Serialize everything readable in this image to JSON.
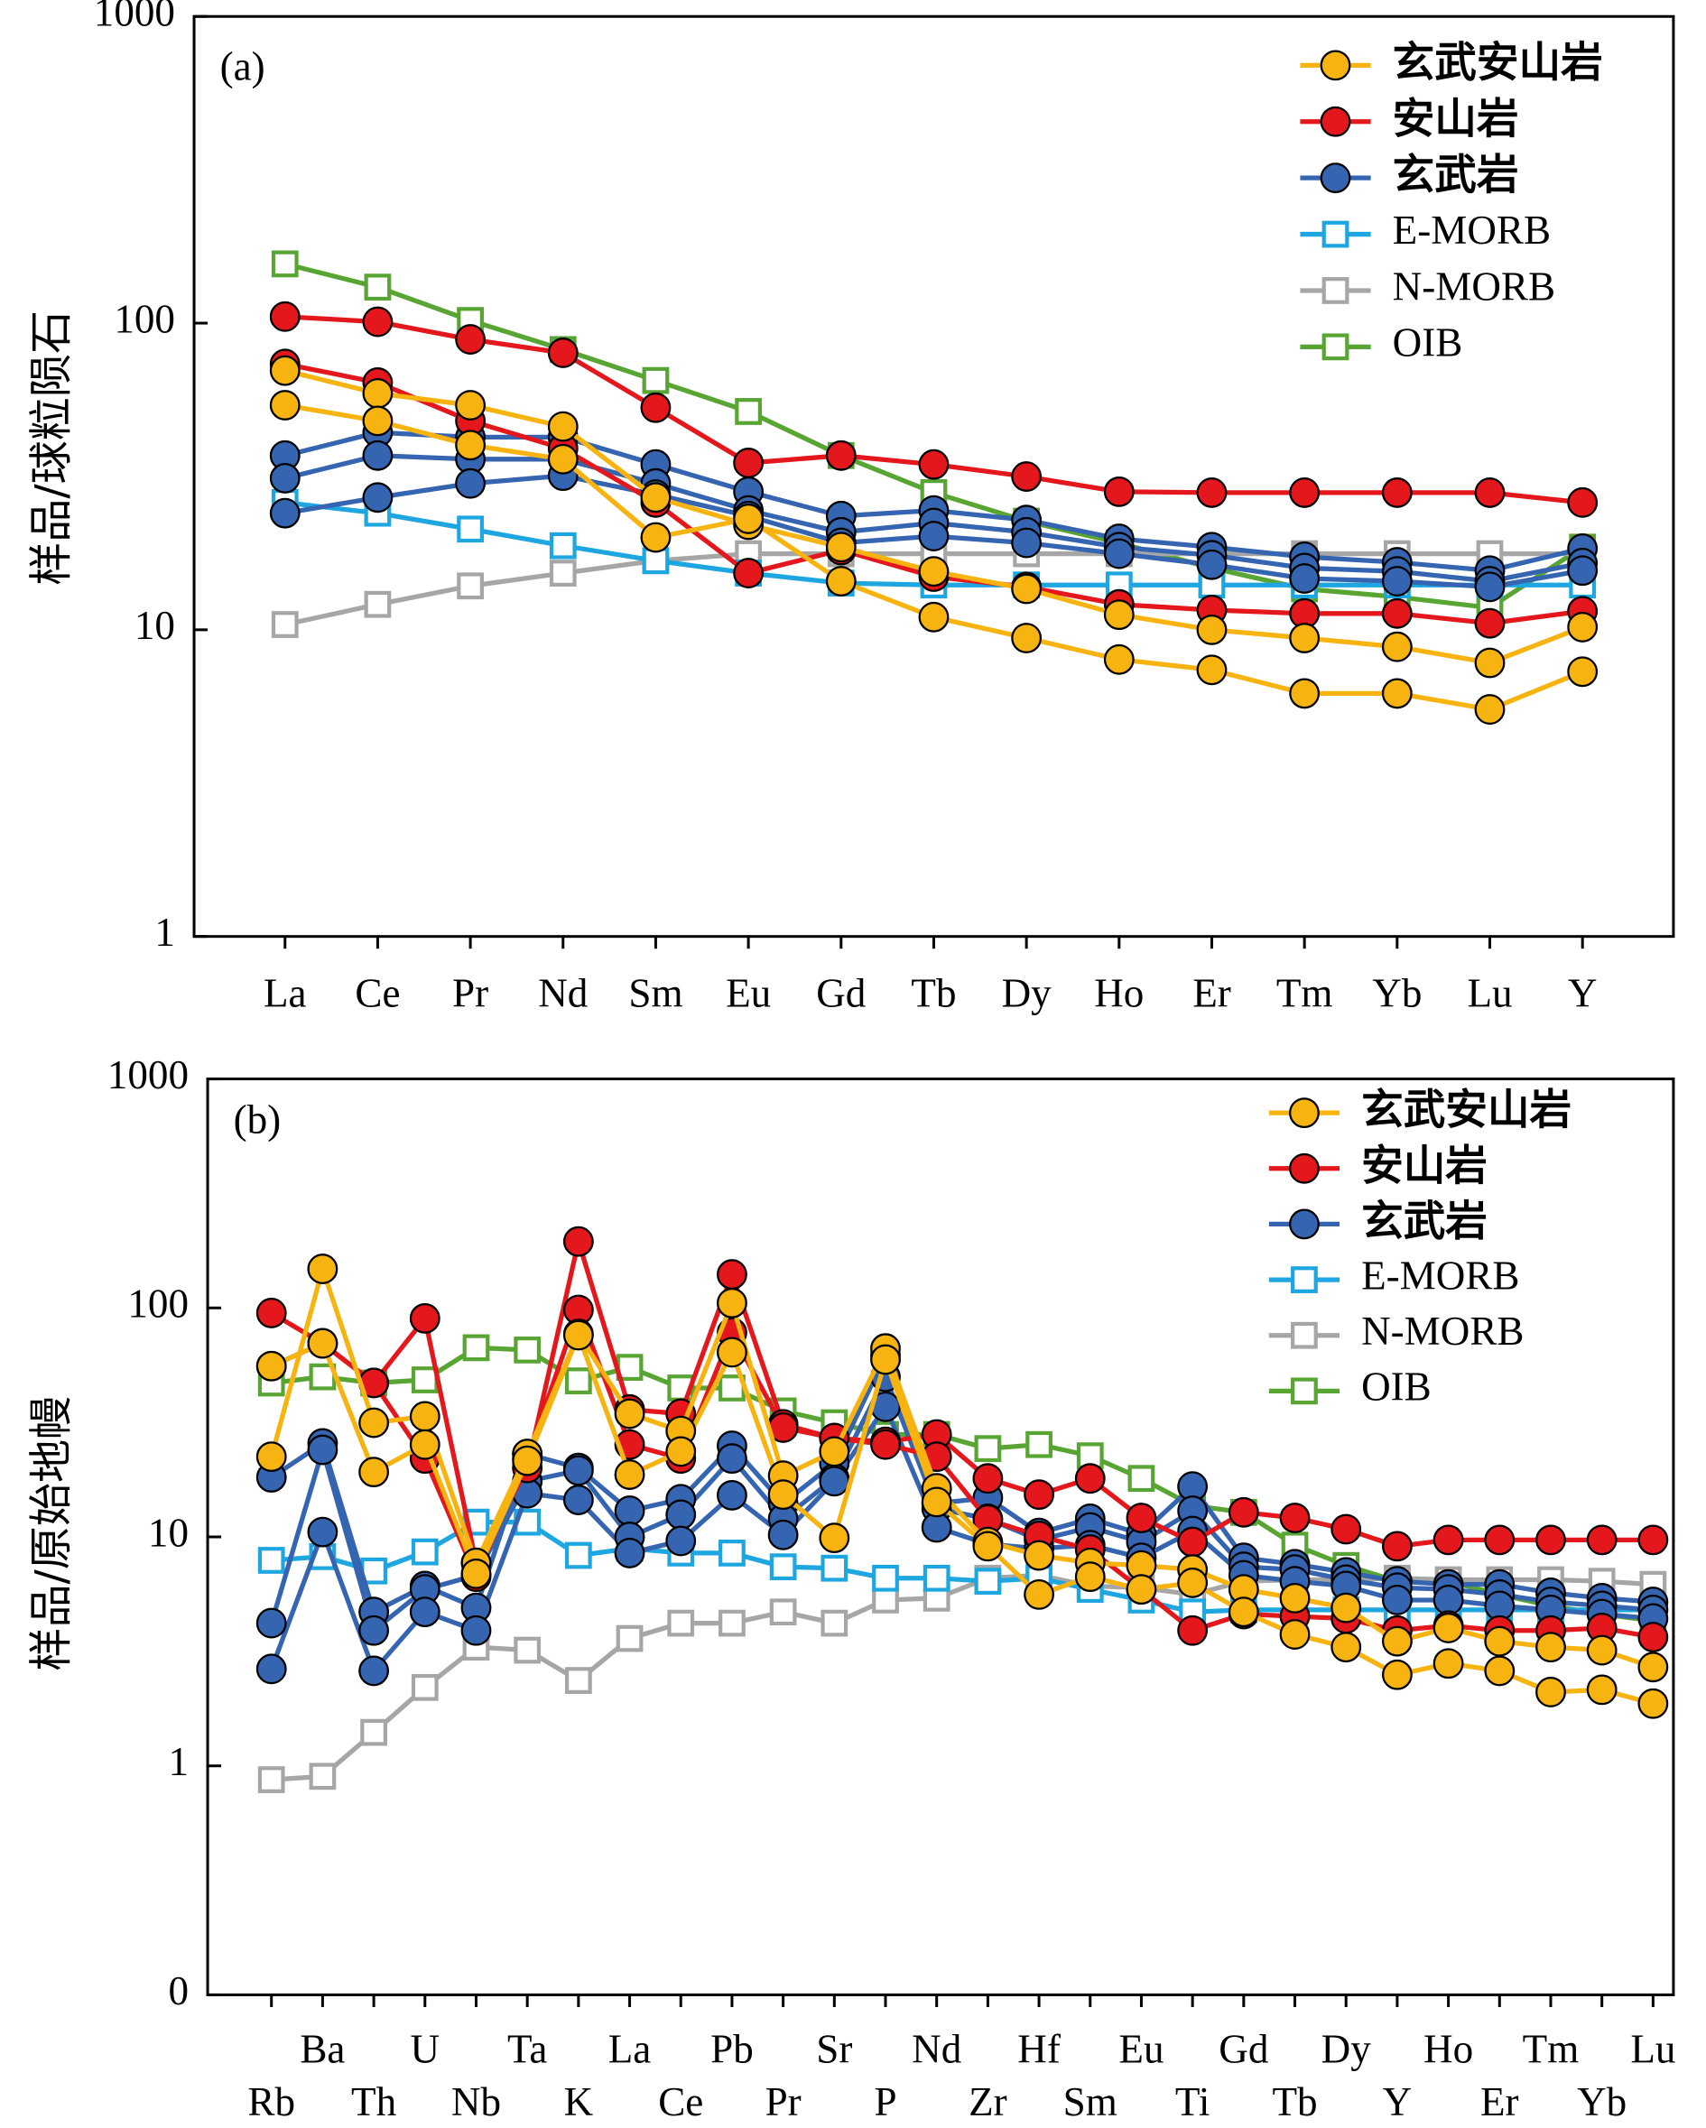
{
  "chart_data": [
    {
      "type": "line",
      "panel_label": "(a)",
      "ylabel": "样品/球粒陨石",
      "log_scale": true,
      "legend": "upper right",
      "categories": [
        "La",
        "Ce",
        "Pr",
        "Nd",
        "Sm",
        "Eu",
        "Gd",
        "Tb",
        "Dy",
        "Ho",
        "Er",
        "Tm",
        "Yb",
        "Lu",
        "Y"
      ],
      "ylim": [
        1,
        1000
      ],
      "yticks": [
        1,
        10,
        100,
        1000
      ],
      "series": [
        {
          "name": "玄武安山岩",
          "color": "#f7b30f",
          "marker": "circle",
          "lines": [
            [
              70,
              59,
              54,
              46,
              27,
              22,
              18.6,
              15.5,
              13.6,
              11.2,
              10,
              9.4,
              8.8,
              7.8,
              10.2
            ],
            [
              54,
              48,
              40,
              36,
              20,
              23,
              14.4,
              11,
              9.4,
              8,
              7.4,
              6.2,
              6.2,
              5.5,
              7.3
            ]
          ]
        },
        {
          "name": "安山岩",
          "color": "#e3171c",
          "marker": "circle",
          "lines": [
            [
              105,
              101,
              88.5,
              80,
              53,
              35,
              37,
              34.6,
              31.6,
              28.2,
              28,
              28,
              28,
              28,
              26
            ],
            [
              73.6,
              64,
              48,
              39,
              26,
              15.3,
              18.2,
              14.9,
              13.8,
              12.1,
              11.6,
              11.3,
              11.3,
              10.5,
              11.5
            ]
          ]
        },
        {
          "name": "玄武岩",
          "color": "#3565b0",
          "marker": "circle",
          "lines": [
            [
              37,
              44,
              42.5,
              42.5,
              34.6,
              28.2,
              23.5,
              24.5,
              22.8,
              19.8,
              18.6,
              17.3,
              16.6,
              15.6,
              18.4
            ],
            [
              31.2,
              37,
              36,
              36,
              30,
              24.5,
              20.8,
              22.3,
              20.8,
              18.6,
              17.5,
              15.9,
              15.5,
              14.4,
              16.5
            ],
            [
              24,
              27,
              30,
              31.8,
              27.6,
              23.5,
              19.2,
              20.2,
              19.2,
              17.7,
              16.3,
              14.7,
              14.4,
              13.8,
              15.6
            ]
          ]
        },
        {
          "name": "E-MORB",
          "color": "#1ea6e0",
          "marker": "square",
          "lines": [
            [
              26,
              24,
              21.3,
              18.8,
              16.8,
              15.3,
              14.2,
              14,
              14,
              14,
              14,
              14,
              14,
              14,
              14
            ]
          ]
        },
        {
          "name": "N-MORB",
          "color": "#a6a6a6",
          "marker": "square",
          "lines": [
            [
              10.4,
              12.1,
              13.9,
              15.3,
              16.8,
              17.7,
              17.7,
              17.7,
              17.7,
              17.7,
              17.7,
              17.7,
              17.7,
              17.7,
              17.7
            ]
          ]
        },
        {
          "name": "OIB",
          "color": "#58a533",
          "marker": "square",
          "lines": [
            [
              156,
              131,
              102,
              82,
              65,
              51.5,
              37,
              28,
              22.6,
              19.2,
              15.9,
              13.6,
              12.8,
              11.8,
              18.6
            ]
          ]
        }
      ]
    },
    {
      "type": "line",
      "panel_label": "(b)",
      "ylabel": "样品/原始地幔",
      "log_scale": true,
      "legend": "upper right",
      "categories": [
        "Rb",
        "Ba",
        "Th",
        "U",
        "Nb",
        "Ta",
        "K",
        "La",
        "Ce",
        "Pb",
        "Pr",
        "Sr",
        "P",
        "Nd",
        "Zr",
        "Hf",
        "Sm",
        "Eu",
        "Ti",
        "Gd",
        "Tb",
        "Dy",
        "Y",
        "Ho",
        "Er",
        "Tm",
        "Yb",
        "Lu"
      ],
      "ylim": [
        0.1,
        1000
      ],
      "yticks": [
        {
          "value": 0.1,
          "label": "0"
        },
        1,
        10,
        100,
        1000
      ],
      "series": [
        {
          "name": "玄武安山岩",
          "color": "#f7b30f",
          "marker": "circle",
          "lines": [
            [
              22.4,
              148,
              31.5,
              33.6,
              7.7,
              23,
              77,
              34.5,
              29,
              105,
              18.5,
              23.6,
              66.5,
              16.3,
              9.5,
              8.3,
              7.7,
              7.5,
              7.2,
              5.9,
              5.4,
              4.9,
              3.5,
              4,
              3.5,
              3.3,
              3.2,
              2.7
            ],
            [
              55.7,
              70,
              19.2,
              25.3,
              6.9,
              21.5,
              76,
              18.7,
              23.6,
              64,
              15.3,
              9.9,
              59.5,
              14.2,
              9.1,
              5.6,
              6.7,
              5.9,
              6.3,
              4.7,
              3.75,
              3.3,
              2.5,
              2.8,
              2.6,
              2.1,
              2.15,
              1.87
            ]
          ]
        },
        {
          "name": "安山岩",
          "color": "#e3171c",
          "marker": "circle",
          "lines": [
            [
              95,
              70,
              47,
              90,
              7.7,
              20,
              195,
              36,
              34.5,
              140,
              31,
              27,
              26,
              28,
              18,
              15.3,
              18,
              12.1,
              9.5,
              12.8,
              12.1,
              10.8,
              9.1,
              9.7,
              9.7,
              9.7,
              9.7,
              9.7
            ],
            [
              55.7,
              70,
              47,
              22,
              6.7,
              22,
              98,
              25.3,
              22,
              78,
              30,
              27,
              25.3,
              22.4,
              11.9,
              10.1,
              8.8,
              5.9,
              3.9,
              4.6,
              4.5,
              4.4,
              3.9,
              4.1,
              3.9,
              3.9,
              4,
              3.65
            ]
          ]
        },
        {
          "name": "玄武岩",
          "color": "#3565b0",
          "marker": "circle",
          "lines": [
            [
              18.2,
              25.6,
              4.7,
              6.1,
              4.9,
              23,
              20,
              13,
              14.6,
              25,
              14,
              21,
              62,
              14,
              14.8,
              10.4,
              12,
              10.3,
              16.6,
              8.1,
              7.6,
              7,
              6.4,
              6.2,
              6.2,
              5.7,
              5.4,
              5.2
            ],
            [
              4.2,
              24,
              3.9,
              5.9,
              6.8,
              17.5,
              19.5,
              10,
              12.5,
              22,
              12,
              18,
              50,
              13.3,
              12,
              9.7,
              11,
              9.5,
              13,
              7.4,
              7.2,
              6.5,
              6,
              5.9,
              5.6,
              5.2,
              5,
              4.8
            ],
            [
              2.65,
              10.5,
              2.6,
              4.7,
              3.9,
              15.5,
              14.5,
              8.5,
              9.6,
              15.2,
              10.2,
              17.5,
              37,
              11,
              9.3,
              8.9,
              9.2,
              8.1,
              10.6,
              6.8,
              6.4,
              6.1,
              5.3,
              5.3,
              5,
              4.8,
              4.6,
              4.4
            ]
          ]
        },
        {
          "name": "E-MORB",
          "color": "#1ea6e0",
          "marker": "square",
          "lines": [
            [
              7.9,
              8.2,
              7.1,
              8.6,
              11.6,
              11.6,
              8.3,
              8.9,
              8.5,
              8.5,
              7.4,
              7.3,
              6.6,
              6.6,
              6.4,
              6.6,
              5.9,
              5.3,
              4.7,
              4.8,
              4.8,
              4.8,
              4.8,
              4.8,
              4.8,
              4.8,
              4.8,
              4.8
            ]
          ]
        },
        {
          "name": "N-MORB",
          "color": "#a6a6a6",
          "marker": "square",
          "lines": [
            [
              0.87,
              0.9,
              1.4,
              2.2,
              3.3,
              3.2,
              2.36,
              3.6,
              4.2,
              4.2,
              4.7,
              4.2,
              5.3,
              5.4,
              6.6,
              6.8,
              6.1,
              6,
              5.6,
              6.4,
              6.5,
              6.5,
              6.6,
              6.5,
              6.5,
              6.5,
              6.4,
              6.2
            ]
          ]
        },
        {
          "name": "OIB",
          "color": "#58a533",
          "marker": "square",
          "lines": [
            [
              47,
              50,
              47,
              48.5,
              67,
              65.5,
              48,
              55,
              44.7,
              44.7,
              35.5,
              31.5,
              28,
              28,
              24.3,
              25.3,
              22.6,
              18,
              13.7,
              12.8,
              9.2,
              7.5,
              6.4,
              6.4,
              5.6,
              5,
              4.6,
              4.3
            ]
          ]
        }
      ]
    }
  ]
}
